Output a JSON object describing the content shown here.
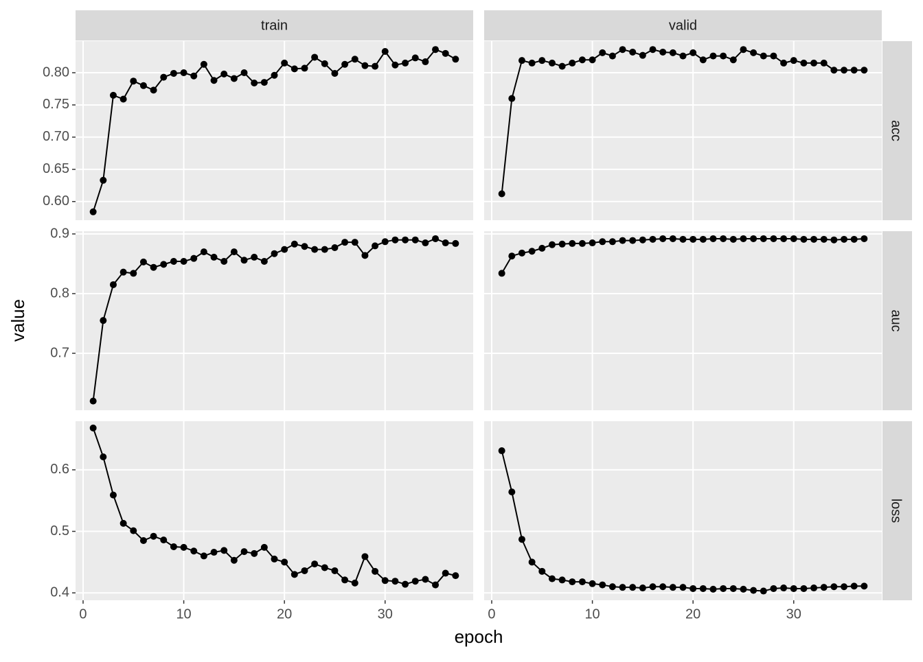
{
  "chart_data": {
    "type": "line",
    "x_label": "epoch",
    "y_label": "value",
    "columns": [
      "train",
      "valid"
    ],
    "color": "#000000",
    "grid": true,
    "x": [
      1,
      2,
      3,
      4,
      5,
      6,
      7,
      8,
      9,
      10,
      11,
      12,
      13,
      14,
      15,
      16,
      17,
      18,
      19,
      20,
      21,
      22,
      23,
      24,
      25,
      26,
      27,
      28,
      29,
      30,
      31,
      32,
      33,
      34,
      35,
      36,
      37
    ],
    "xlim": [
      -0.75,
      38.75
    ],
    "xticks": [
      0,
      10,
      20,
      30
    ],
    "rows": [
      {
        "strip": "acc",
        "ylim": [
          0.571,
          0.849
        ],
        "yticks": [
          {
            "value": 0.6,
            "label": "0.60"
          },
          0.65,
          {
            "value": 0.7,
            "label": "0.70"
          },
          0.75,
          {
            "value": 0.8,
            "label": "0.80"
          }
        ],
        "panels": [
          {
            "values": [
              0.584,
              0.633,
              0.765,
              0.759,
              0.787,
              0.78,
              0.773,
              0.793,
              0.799,
              0.8,
              0.795,
              0.813,
              0.788,
              0.798,
              0.791,
              0.8,
              0.784,
              0.785,
              0.796,
              0.815,
              0.806,
              0.807,
              0.824,
              0.814,
              0.799,
              0.813,
              0.821,
              0.811,
              0.81,
              0.833,
              0.812,
              0.815,
              0.823,
              0.817,
              0.836,
              0.83,
              0.821
            ]
          },
          {
            "values": [
              0.612,
              0.76,
              0.819,
              0.815,
              0.819,
              0.815,
              0.81,
              0.815,
              0.82,
              0.82,
              0.831,
              0.826,
              0.836,
              0.832,
              0.827,
              0.836,
              0.832,
              0.831,
              0.826,
              0.831,
              0.82,
              0.826,
              0.826,
              0.82,
              0.836,
              0.831,
              0.826,
              0.826,
              0.815,
              0.819,
              0.815,
              0.815,
              0.815,
              0.804,
              0.804,
              0.804,
              0.804
            ]
          }
        ]
      },
      {
        "strip": "auc",
        "ylim": [
          0.6046,
          0.9046
        ],
        "yticks": [
          0.7,
          0.8,
          0.9
        ],
        "panels": [
          {
            "values": [
              0.62,
              0.755,
              0.815,
              0.836,
              0.834,
              0.853,
              0.844,
              0.849,
              0.854,
              0.854,
              0.859,
              0.87,
              0.861,
              0.854,
              0.87,
              0.856,
              0.861,
              0.854,
              0.867,
              0.874,
              0.883,
              0.879,
              0.874,
              0.874,
              0.877,
              0.886,
              0.886,
              0.864,
              0.88,
              0.887,
              0.89,
              0.89,
              0.89,
              0.885,
              0.892,
              0.885,
              0.884
            ]
          },
          {
            "values": [
              0.834,
              0.863,
              0.868,
              0.871,
              0.876,
              0.882,
              0.883,
              0.884,
              0.884,
              0.885,
              0.887,
              0.887,
              0.889,
              0.889,
              0.89,
              0.891,
              0.892,
              0.892,
              0.891,
              0.891,
              0.891,
              0.892,
              0.892,
              0.891,
              0.892,
              0.892,
              0.892,
              0.892,
              0.892,
              0.892,
              0.891,
              0.891,
              0.891,
              0.89,
              0.891,
              0.891,
              0.892
            ]
          }
        ]
      },
      {
        "strip": "loss",
        "ylim": [
          0.388,
          0.679
        ],
        "yticks": [
          0.4,
          0.5,
          0.6
        ],
        "panels": [
          {
            "values": [
              0.668,
              0.621,
              0.559,
              0.513,
              0.501,
              0.485,
              0.492,
              0.486,
              0.475,
              0.474,
              0.468,
              0.46,
              0.466,
              0.469,
              0.453,
              0.467,
              0.464,
              0.474,
              0.455,
              0.45,
              0.43,
              0.436,
              0.447,
              0.441,
              0.436,
              0.421,
              0.416,
              0.459,
              0.435,
              0.42,
              0.419,
              0.414,
              0.419,
              0.422,
              0.413,
              0.432,
              0.428
            ]
          },
          {
            "values": [
              0.631,
              0.564,
              0.487,
              0.45,
              0.435,
              0.423,
              0.421,
              0.418,
              0.418,
              0.415,
              0.413,
              0.41,
              0.409,
              0.409,
              0.408,
              0.41,
              0.41,
              0.409,
              0.409,
              0.407,
              0.407,
              0.406,
              0.407,
              0.407,
              0.406,
              0.404,
              0.403,
              0.407,
              0.408,
              0.407,
              0.407,
              0.408,
              0.409,
              0.41,
              0.41,
              0.411,
              0.411
            ]
          }
        ]
      }
    ]
  }
}
